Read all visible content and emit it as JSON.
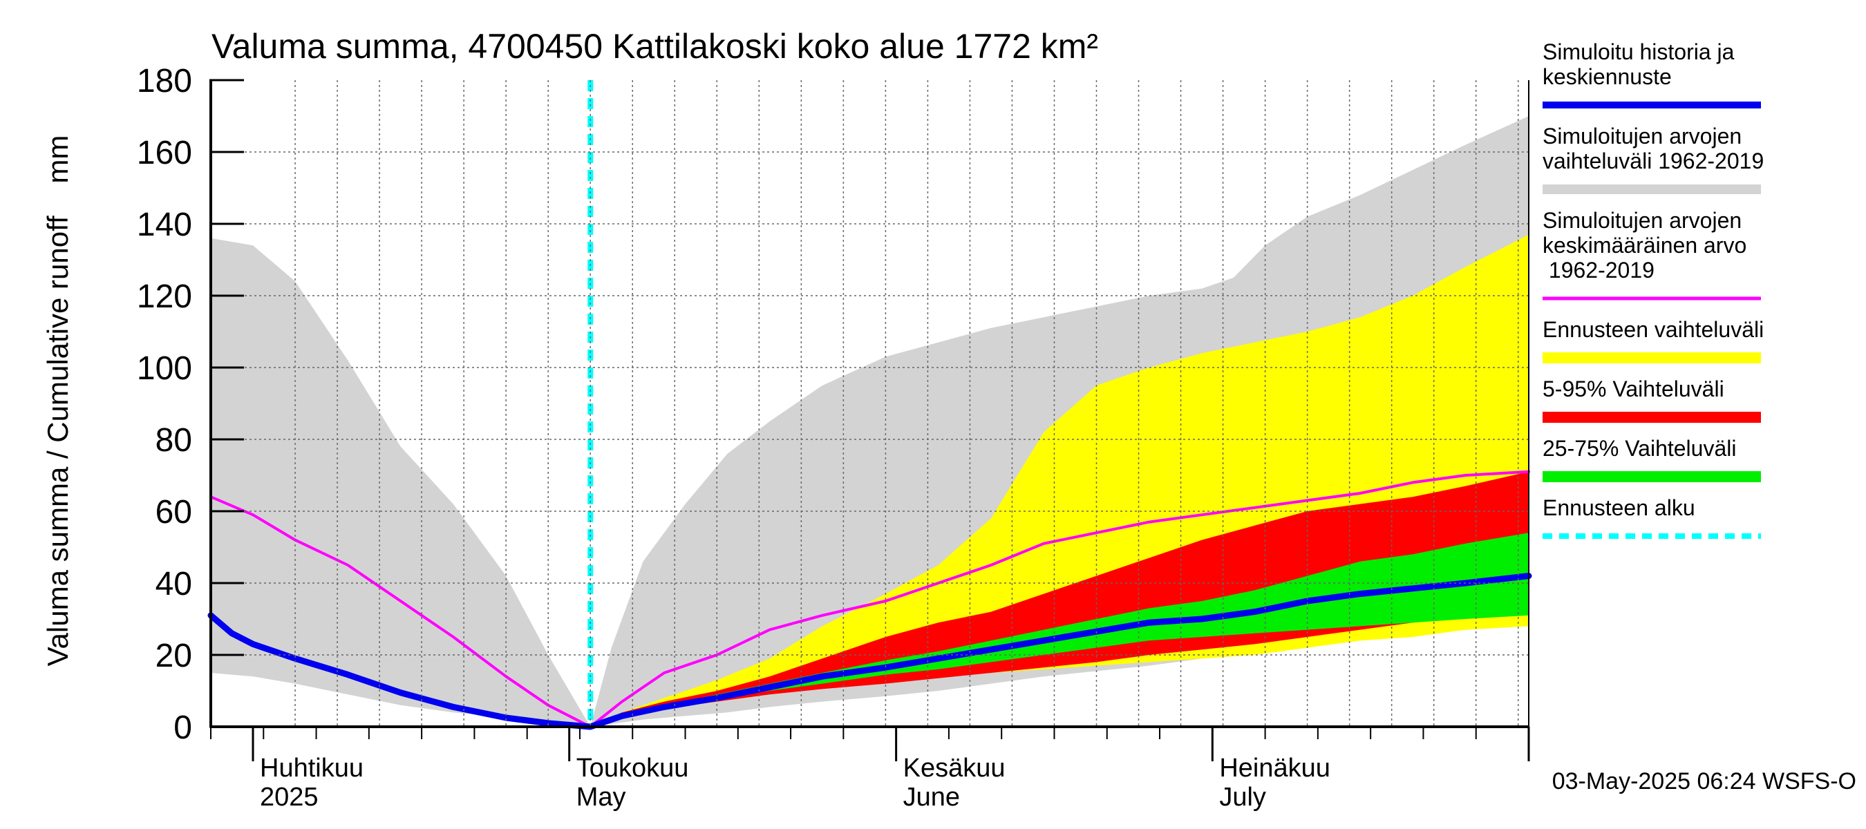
{
  "chart_data": {
    "type": "area",
    "title": "Valuma summa, 4700450 Kattilakoski koko alue 1772 km²",
    "ylabel": "Valuma summa / Cumulative runoff    mm",
    "ylim": [
      0,
      180
    ],
    "yticks": [
      "0",
      "20",
      "40",
      "60",
      "80",
      "100",
      "120",
      "140",
      "160",
      "180"
    ],
    "xlim": [
      "2025-03-28",
      "2025-07-31"
    ],
    "grid": true,
    "month_labels": [
      {
        "fi": "Huhtikuu",
        "en": "2025",
        "date": "2025-04-01"
      },
      {
        "fi": "Toukokuu",
        "en": "May",
        "date": "2025-05-01"
      },
      {
        "fi": "Kesäkuu",
        "en": "June",
        "date": "2025-06-01"
      },
      {
        "fi": "Heinäkuu",
        "en": "July",
        "date": "2025-07-01"
      }
    ],
    "forecast_start": "2025-05-03",
    "footer": "03-May-2025 06:24 WSFS-O",
    "legend": [
      {
        "label": "Simuloitu historia ja keskiennuste",
        "color": "#0000ee"
      },
      {
        "label": "Simuloitujen arvojen vaihteluväli 1962-2019",
        "color": "#d3d3d3"
      },
      {
        "label": "Simuloitujen arvojen keskimääräinen arvo 1962-2019",
        "color": "#ff00ff"
      },
      {
        "label": "Ennusteen vaihteluväli",
        "color": "#ffff00"
      },
      {
        "label": "5-95% Vaihteluväli",
        "color": "#ff0000"
      },
      {
        "label": "25-75% Vaihteluväli",
        "color": "#00ee00"
      },
      {
        "label": "Ennusteen alku",
        "color": "#00ffff"
      }
    ],
    "series": [
      {
        "name": "Simuloitujen arvojen vaihteluväli 1962-2019",
        "kind": "band",
        "color": "#d3d3d3",
        "x": [
          "2025-03-28",
          "2025-04-01",
          "2025-04-05",
          "2025-04-10",
          "2025-04-15",
          "2025-04-20",
          "2025-04-25",
          "2025-04-29",
          "2025-05-03",
          "2025-05-05",
          "2025-05-08",
          "2025-05-12",
          "2025-05-16",
          "2025-05-20",
          "2025-05-25",
          "2025-05-31",
          "2025-06-05",
          "2025-06-10",
          "2025-06-15",
          "2025-06-20",
          "2025-06-25",
          "2025-06-30",
          "2025-07-03",
          "2025-07-06",
          "2025-07-10",
          "2025-07-15",
          "2025-07-20",
          "2025-07-25",
          "2025-07-31"
        ],
        "low": [
          15,
          14,
          12,
          9,
          6,
          4,
          2.5,
          1.5,
          0,
          0.8,
          2,
          3,
          4,
          5.5,
          7,
          8.5,
          10,
          12,
          14,
          15.5,
          17,
          19,
          20,
          21,
          22.5,
          24,
          25.5,
          27,
          28
        ],
        "high": [
          136,
          134,
          124,
          102,
          78,
          62,
          42,
          20,
          0,
          22,
          46,
          62,
          76,
          85,
          95,
          103,
          107,
          111,
          114,
          117,
          120,
          122,
          125,
          134,
          142,
          148,
          155,
          162,
          170
        ]
      },
      {
        "name": "Ennusteen vaihteluväli",
        "kind": "band",
        "color": "#ffff00",
        "x": [
          "2025-05-03",
          "2025-05-06",
          "2025-05-10",
          "2025-05-15",
          "2025-05-20",
          "2025-05-25",
          "2025-05-31",
          "2025-06-05",
          "2025-06-10",
          "2025-06-15",
          "2025-06-20",
          "2025-06-25",
          "2025-06-30",
          "2025-07-05",
          "2025-07-10",
          "2025-07-15",
          "2025-07-20",
          "2025-07-25",
          "2025-07-31"
        ],
        "low": [
          0,
          3,
          5,
          7,
          9,
          11,
          12,
          14,
          15,
          16,
          17,
          18,
          19,
          20,
          22,
          24,
          25,
          27,
          28
        ],
        "high": [
          0,
          4,
          8,
          13,
          19,
          28,
          37,
          45,
          58,
          82,
          95,
          100,
          104,
          107,
          110,
          114,
          120,
          128,
          137
        ]
      },
      {
        "name": "5-95% Vaihteluväli",
        "kind": "band",
        "color": "#ff0000",
        "x": [
          "2025-05-03",
          "2025-05-06",
          "2025-05-10",
          "2025-05-15",
          "2025-05-20",
          "2025-05-25",
          "2025-05-31",
          "2025-06-05",
          "2025-06-10",
          "2025-06-15",
          "2025-06-20",
          "2025-06-25",
          "2025-06-30",
          "2025-07-05",
          "2025-07-10",
          "2025-07-15",
          "2025-07-20",
          "2025-07-25",
          "2025-07-31"
        ],
        "low": [
          0,
          3,
          5,
          7,
          9,
          10.5,
          12,
          13.5,
          15,
          16.5,
          18,
          20,
          21.5,
          23,
          25,
          27,
          29,
          31,
          34
        ],
        "high": [
          0,
          4,
          7,
          10,
          14,
          19,
          25,
          29,
          32,
          37,
          42,
          47,
          52,
          56,
          60,
          62,
          64,
          67,
          71
        ]
      },
      {
        "name": "25-75% Vaihteluväli",
        "kind": "band",
        "color": "#00ee00",
        "x": [
          "2025-05-03",
          "2025-05-06",
          "2025-05-10",
          "2025-05-15",
          "2025-05-20",
          "2025-05-25",
          "2025-05-31",
          "2025-06-05",
          "2025-06-10",
          "2025-06-15",
          "2025-06-20",
          "2025-06-25",
          "2025-06-30",
          "2025-07-05",
          "2025-07-10",
          "2025-07-15",
          "2025-07-20",
          "2025-07-25",
          "2025-07-31"
        ],
        "low": [
          0,
          3,
          5.5,
          8,
          10,
          12,
          14.5,
          16,
          18,
          20,
          22,
          24,
          25,
          26,
          27,
          28,
          29,
          30,
          31
        ],
        "high": [
          0,
          3.5,
          6,
          9,
          12,
          15,
          18.5,
          21,
          24,
          27,
          30,
          33,
          35,
          38,
          42,
          46,
          48,
          51,
          54
        ]
      },
      {
        "name": "Simuloitujen arvojen keskimääräinen arvo 1962-2019",
        "kind": "line",
        "color": "#ff00ff",
        "x": [
          "2025-03-28",
          "2025-04-01",
          "2025-04-05",
          "2025-04-10",
          "2025-04-15",
          "2025-04-20",
          "2025-04-25",
          "2025-04-29",
          "2025-05-03",
          "2025-05-06",
          "2025-05-10",
          "2025-05-15",
          "2025-05-20",
          "2025-05-25",
          "2025-05-31",
          "2025-06-05",
          "2025-06-10",
          "2025-06-15",
          "2025-06-20",
          "2025-06-25",
          "2025-06-30",
          "2025-07-05",
          "2025-07-10",
          "2025-07-15",
          "2025-07-20",
          "2025-07-25",
          "2025-07-31"
        ],
        "y": [
          64,
          59,
          52,
          45,
          35,
          25,
          14,
          6,
          0,
          7,
          15,
          20,
          27,
          31,
          35,
          40,
          45,
          51,
          54,
          57,
          59,
          61,
          63,
          65,
          68,
          70,
          71
        ]
      },
      {
        "name": "Simuloitu historia ja keskiennuste",
        "kind": "line",
        "color": "#0000ee",
        "x": [
          "2025-03-28",
          "2025-03-30",
          "2025-04-01",
          "2025-04-05",
          "2025-04-10",
          "2025-04-15",
          "2025-04-20",
          "2025-04-25",
          "2025-04-29",
          "2025-05-03",
          "2025-05-06",
          "2025-05-10",
          "2025-05-15",
          "2025-05-20",
          "2025-05-25",
          "2025-05-31",
          "2025-06-05",
          "2025-06-10",
          "2025-06-15",
          "2025-06-20",
          "2025-06-25",
          "2025-06-30",
          "2025-07-05",
          "2025-07-10",
          "2025-07-15",
          "2025-07-20",
          "2025-07-25",
          "2025-07-31"
        ],
        "y": [
          31,
          26,
          23,
          19,
          14.5,
          9.5,
          5.5,
          2.5,
          1,
          0,
          3,
          5.5,
          8,
          11,
          14,
          16.5,
          19,
          21.5,
          24,
          26.5,
          29,
          30,
          32,
          35,
          37,
          38.5,
          40,
          42
        ]
      }
    ]
  }
}
